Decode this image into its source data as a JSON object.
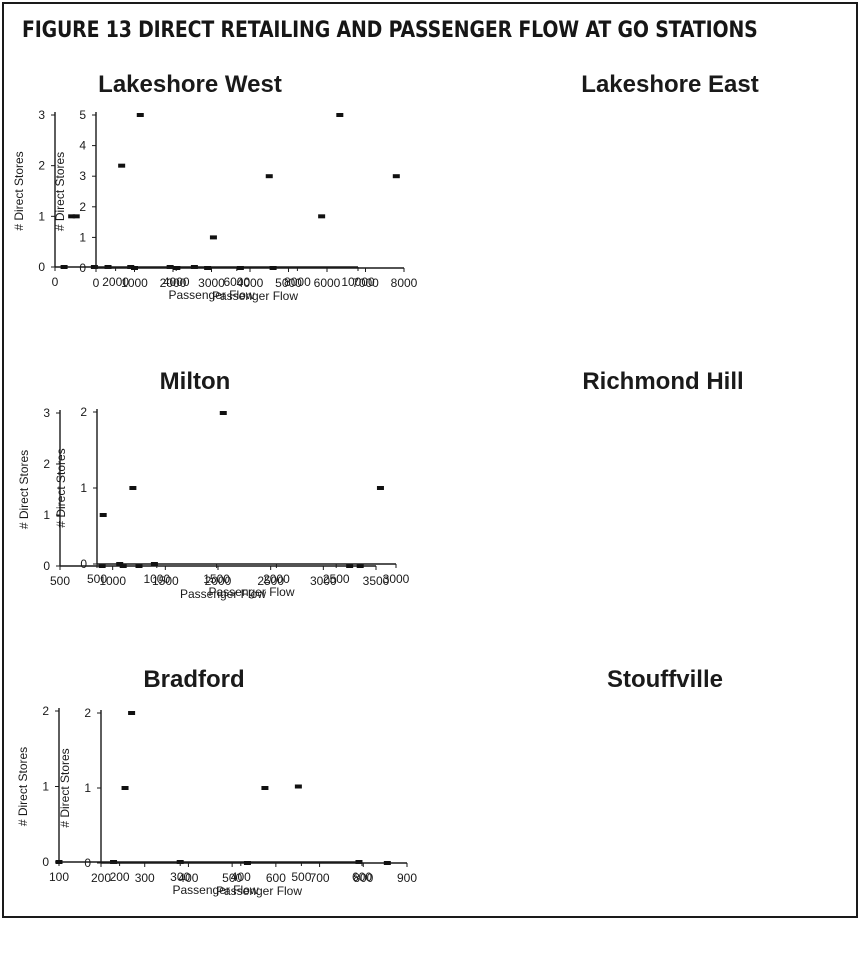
{
  "figure_title": "FIGURE 13   DIRECT RETAILING AND PASSENGER FLOW AT GO STATIONS",
  "chart_data": [
    {
      "type": "scatter",
      "title": "Lakeshore West",
      "xlabel": "Passenger Flow",
      "ylabel": "# Direct Stores",
      "xlim": [
        0,
        10000
      ],
      "ylim": [
        0,
        3
      ],
      "xticks": [
        0,
        2000,
        4000,
        6000,
        8000,
        10000
      ],
      "yticks": [
        0,
        1,
        2,
        3
      ],
      "grid": false,
      "points": [
        {
          "x": 300,
          "y": 0
        },
        {
          "x": 550,
          "y": 1
        },
        {
          "x": 700,
          "y": 1
        },
        {
          "x": 1300,
          "y": 0
        },
        {
          "x": 1750,
          "y": 0
        },
        {
          "x": 2200,
          "y": 2
        },
        {
          "x": 2500,
          "y": 0
        },
        {
          "x": 3800,
          "y": 0
        },
        {
          "x": 4600,
          "y": 0
        },
        {
          "x": 8800,
          "y": 1
        },
        {
          "x": 9400,
          "y": 3
        }
      ]
    },
    {
      "type": "scatter",
      "title": "Lakeshore East",
      "xlabel": "Passenger Flow",
      "ylabel": "# Direct Stores",
      "xlim": [
        0,
        8000
      ],
      "ylim": [
        0,
        5
      ],
      "xticks": [
        0,
        1000,
        2000,
        3000,
        4000,
        5000,
        6000,
        7000,
        8000
      ],
      "yticks": [
        0,
        1,
        2,
        3,
        4,
        5
      ],
      "grid": false,
      "points": [
        {
          "x": 1000,
          "y": 0
        },
        {
          "x": 1150,
          "y": 5
        },
        {
          "x": 2100,
          "y": 0
        },
        {
          "x": 2900,
          "y": 0
        },
        {
          "x": 3050,
          "y": 1
        },
        {
          "x": 3750,
          "y": 0
        },
        {
          "x": 4500,
          "y": 3
        },
        {
          "x": 4600,
          "y": 0
        },
        {
          "x": 7800,
          "y": 3
        }
      ]
    },
    {
      "type": "scatter",
      "title": "Milton",
      "xlabel": "Passenger Flow",
      "ylabel": "# Direct Stores",
      "xlim": [
        500,
        3500
      ],
      "ylim": [
        0,
        3
      ],
      "xticks": [
        500,
        1000,
        1500,
        2000,
        2500,
        3000,
        3500
      ],
      "yticks": [
        0,
        1,
        2,
        3
      ],
      "grid": false,
      "points": [
        {
          "x": 900,
          "y": 0
        },
        {
          "x": 910,
          "y": 1
        },
        {
          "x": 1100,
          "y": 0
        },
        {
          "x": 1250,
          "y": 0
        },
        {
          "x": 2050,
          "y": 3
        },
        {
          "x": 3250,
          "y": 0
        },
        {
          "x": 3350,
          "y": 0
        }
      ]
    },
    {
      "type": "scatter",
      "title": "Richmond Hill",
      "xlabel": "Passenger Flow",
      "ylabel": "# Direct Stores",
      "xlim": [
        500,
        3000
      ],
      "ylim": [
        0,
        2
      ],
      "xticks": [
        500,
        1000,
        1500,
        2000,
        2500,
        3000
      ],
      "yticks": [
        0,
        1,
        2
      ],
      "grid": false,
      "points": [
        {
          "x": 690,
          "y": 0
        },
        {
          "x": 800,
          "y": 1
        },
        {
          "x": 980,
          "y": 0
        },
        {
          "x": 2870,
          "y": 1
        }
      ]
    },
    {
      "type": "scatter",
      "title": "Bradford",
      "xlabel": "Passenger Flow",
      "ylabel": "# Direct Stores",
      "xlim": [
        100,
        600
      ],
      "ylim": [
        0,
        2
      ],
      "xticks": [
        100,
        200,
        300,
        400,
        500,
        600
      ],
      "yticks": [
        0,
        1,
        2
      ],
      "grid": false,
      "points": [
        {
          "x": 100,
          "y": 0
        },
        {
          "x": 190,
          "y": 0
        },
        {
          "x": 300,
          "y": 0
        },
        {
          "x": 495,
          "y": 1
        },
        {
          "x": 595,
          "y": 0
        }
      ]
    },
    {
      "type": "scatter",
      "title": "Stouffville",
      "xlabel": "Passenger Flow",
      "ylabel": "# Direct Stores",
      "xlim": [
        200,
        900
      ],
      "ylim": [
        0,
        2
      ],
      "xticks": [
        200,
        300,
        400,
        500,
        600,
        700,
        800,
        900
      ],
      "yticks": [
        0,
        1,
        2
      ],
      "grid": false,
      "points": [
        {
          "x": 255,
          "y": 1
        },
        {
          "x": 270,
          "y": 2
        },
        {
          "x": 535,
          "y": 0
        },
        {
          "x": 575,
          "y": 1
        },
        {
          "x": 855,
          "y": 0
        }
      ]
    }
  ]
}
